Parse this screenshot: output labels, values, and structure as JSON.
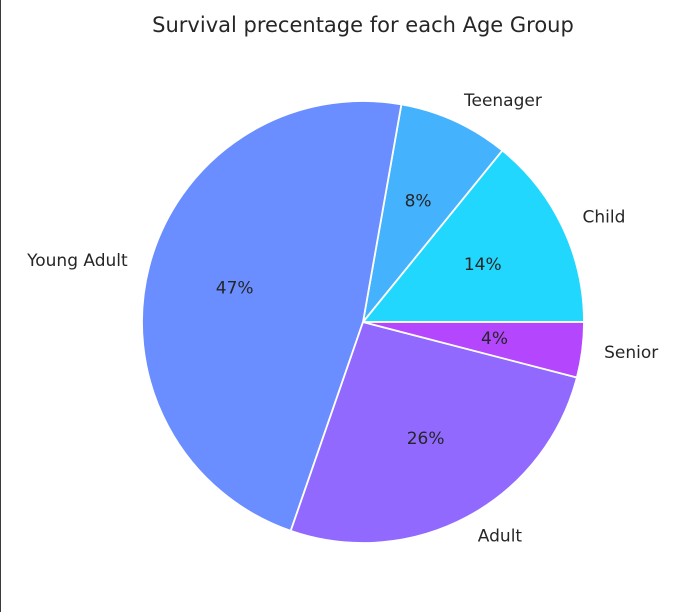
{
  "chart_data": {
    "type": "pie",
    "title": "Survival precentage for each Age Group",
    "start_angle_deg": 0,
    "direction": "counterclockwise",
    "slices": [
      {
        "label": "Child",
        "value": 14,
        "pct_label": "14%",
        "color": "#22d7fe"
      },
      {
        "label": "Teenager",
        "value": 8,
        "pct_label": "8%",
        "color": "#45b2fe"
      },
      {
        "label": "Young Adult",
        "value": 47,
        "pct_label": "47%",
        "color": "#6a8dff"
      },
      {
        "label": "Adult",
        "value": 26,
        "pct_label": "26%",
        "color": "#9169ff"
      },
      {
        "label": "Senior",
        "value": 4,
        "pct_label": "4%",
        "color": "#b446fe"
      }
    ]
  }
}
